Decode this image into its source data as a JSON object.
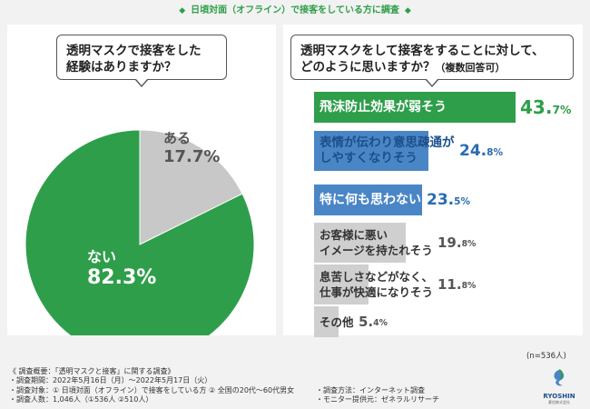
{
  "header": {
    "title": "日頃対面（オフライン）で接客をしている方に調査",
    "diamond": "◆"
  },
  "left_panel": {
    "question_lines": [
      "透明マスクで接客をした",
      "経験はありますか？"
    ]
  },
  "right_panel": {
    "question_lines": [
      "透明マスクをして接客をすることに対して、",
      "どのように思いますか？"
    ],
    "question_note": "（複数回答可）",
    "n_note": "(n=536人)"
  },
  "chart_data": [
    {
      "type": "pie",
      "title": "透明マスクで接客をした経験はありますか？",
      "slices": [
        {
          "label": "ある",
          "value": 17.7,
          "display": "17.7%",
          "color": "#c8c8c8",
          "text_color": "#555555"
        },
        {
          "label": "ない",
          "value": 82.3,
          "display": "82.3%",
          "color": "#2e9e4a",
          "text_color": "#ffffff"
        }
      ]
    },
    {
      "type": "bar",
      "title": "透明マスクをして接客をすることに対して、どのように思いますか？（複数回答可）",
      "n": 536,
      "xlim": [
        0,
        50
      ],
      "bars": [
        {
          "label": "飛沫防止効果が弱そう",
          "value": 43.7,
          "int": "43.",
          "dec": "7%",
          "color": "#2e9e4a",
          "text_color": "#ffffff",
          "pct_color": "#2e9e4a"
        },
        {
          "label": "表情が伝わり意思疎通が\nしやすくなりそう",
          "value": 24.8,
          "int": "24.",
          "dec": "8%",
          "color": "#4a86c6",
          "text_color": "#1c4f8a",
          "pct_color": "#2a6bb0"
        },
        {
          "label": "特に何も思わない",
          "value": 23.5,
          "int": "23.",
          "dec": "5%",
          "color": "#4a86c6",
          "text_color": "#ffffff",
          "pct_color": "#2a6bb0"
        },
        {
          "label": "お客様に悪い\nイメージを持たれそう",
          "value": 19.8,
          "int": "19.",
          "dec": "8%",
          "color": "#cfcfcf",
          "text_color": "#333333",
          "pct_color": "#555555"
        },
        {
          "label": "息苦しさなどがなく、\n仕事が快適になりそう",
          "value": 11.8,
          "int": "11.",
          "dec": "8%",
          "color": "#cfcfcf",
          "text_color": "#333333",
          "pct_color": "#555555"
        },
        {
          "label": "その他",
          "value": 5.4,
          "int": "5.",
          "dec": "4%",
          "color": "#cfcfcf",
          "text_color": "#333333",
          "pct_color": "#555555"
        }
      ]
    }
  ],
  "footer": {
    "lines_left": [
      "《 調査概要：「透明マスクと接客」に関する調査》",
      "・調査期間：2022年5月16日（月）～2022年5月17日（火）",
      "・調査対象：① 日頃対面（オフライン）で接客をしている方 ② 全国の20代～60代男女",
      "・調査人数：1,046人（①536人 ②510人）"
    ],
    "lines_right": [
      "・調査方法：インターネット調査",
      "・モニター提供元：ゼネラルリサーチ"
    ]
  },
  "logo": {
    "brand": "RYOSHIN",
    "corp": "菱信株式会社"
  }
}
